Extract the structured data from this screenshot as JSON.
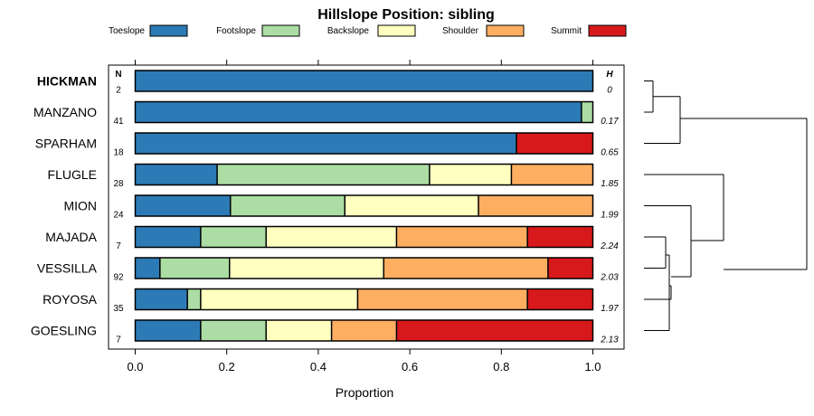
{
  "chart_data": {
    "type": "bar",
    "orientation": "horizontal-stacked-proportion",
    "title": "Hillslope Position: sibling",
    "xlabel": "Proportion",
    "xlim": [
      0,
      1
    ],
    "xticks": [
      "0.0",
      "0.2",
      "0.4",
      "0.6",
      "0.8",
      "1.0"
    ],
    "n_header": "N",
    "h_header": "H",
    "legend": [
      {
        "name": "Toeslope",
        "color": "#2c7bb6"
      },
      {
        "name": "Footslope",
        "color": "#abdda4"
      },
      {
        "name": "Backslope",
        "color": "#ffffbf"
      },
      {
        "name": "Shoulder",
        "color": "#fdae61"
      },
      {
        "name": "Summit",
        "color": "#d7191c"
      }
    ],
    "rows": [
      {
        "name": "HICKMAN",
        "bold": true,
        "n": "2",
        "h": "0",
        "values": [
          1.0,
          0,
          0,
          0,
          0
        ]
      },
      {
        "name": "MANZANO",
        "bold": false,
        "n": "41",
        "h": "0.17",
        "values": [
          0.975,
          0.025,
          0,
          0,
          0
        ]
      },
      {
        "name": "SPARHAM",
        "bold": false,
        "n": "18",
        "h": "0.65",
        "values": [
          0.833,
          0,
          0,
          0,
          0.167
        ]
      },
      {
        "name": "FLUGLE",
        "bold": false,
        "n": "28",
        "h": "1.85",
        "values": [
          0.179,
          0.464,
          0.179,
          0.178,
          0
        ]
      },
      {
        "name": "MION",
        "bold": false,
        "n": "24",
        "h": "1.99",
        "values": [
          0.208,
          0.25,
          0.292,
          0.25,
          0
        ]
      },
      {
        "name": "MAJADA",
        "bold": false,
        "n": "7",
        "h": "2.24",
        "values": [
          0.143,
          0.143,
          0.285,
          0.286,
          0.143
        ]
      },
      {
        "name": "VESSILLA",
        "bold": false,
        "n": "92",
        "h": "2.03",
        "values": [
          0.054,
          0.152,
          0.337,
          0.359,
          0.098
        ]
      },
      {
        "name": "ROYOSA",
        "bold": false,
        "n": "35",
        "h": "1.97",
        "values": [
          0.114,
          0.029,
          0.343,
          0.371,
          0.143
        ]
      },
      {
        "name": "GOESLING",
        "bold": false,
        "n": "7",
        "h": "2.13",
        "values": [
          0.143,
          0.143,
          0.143,
          0.142,
          0.429
        ]
      }
    ]
  }
}
